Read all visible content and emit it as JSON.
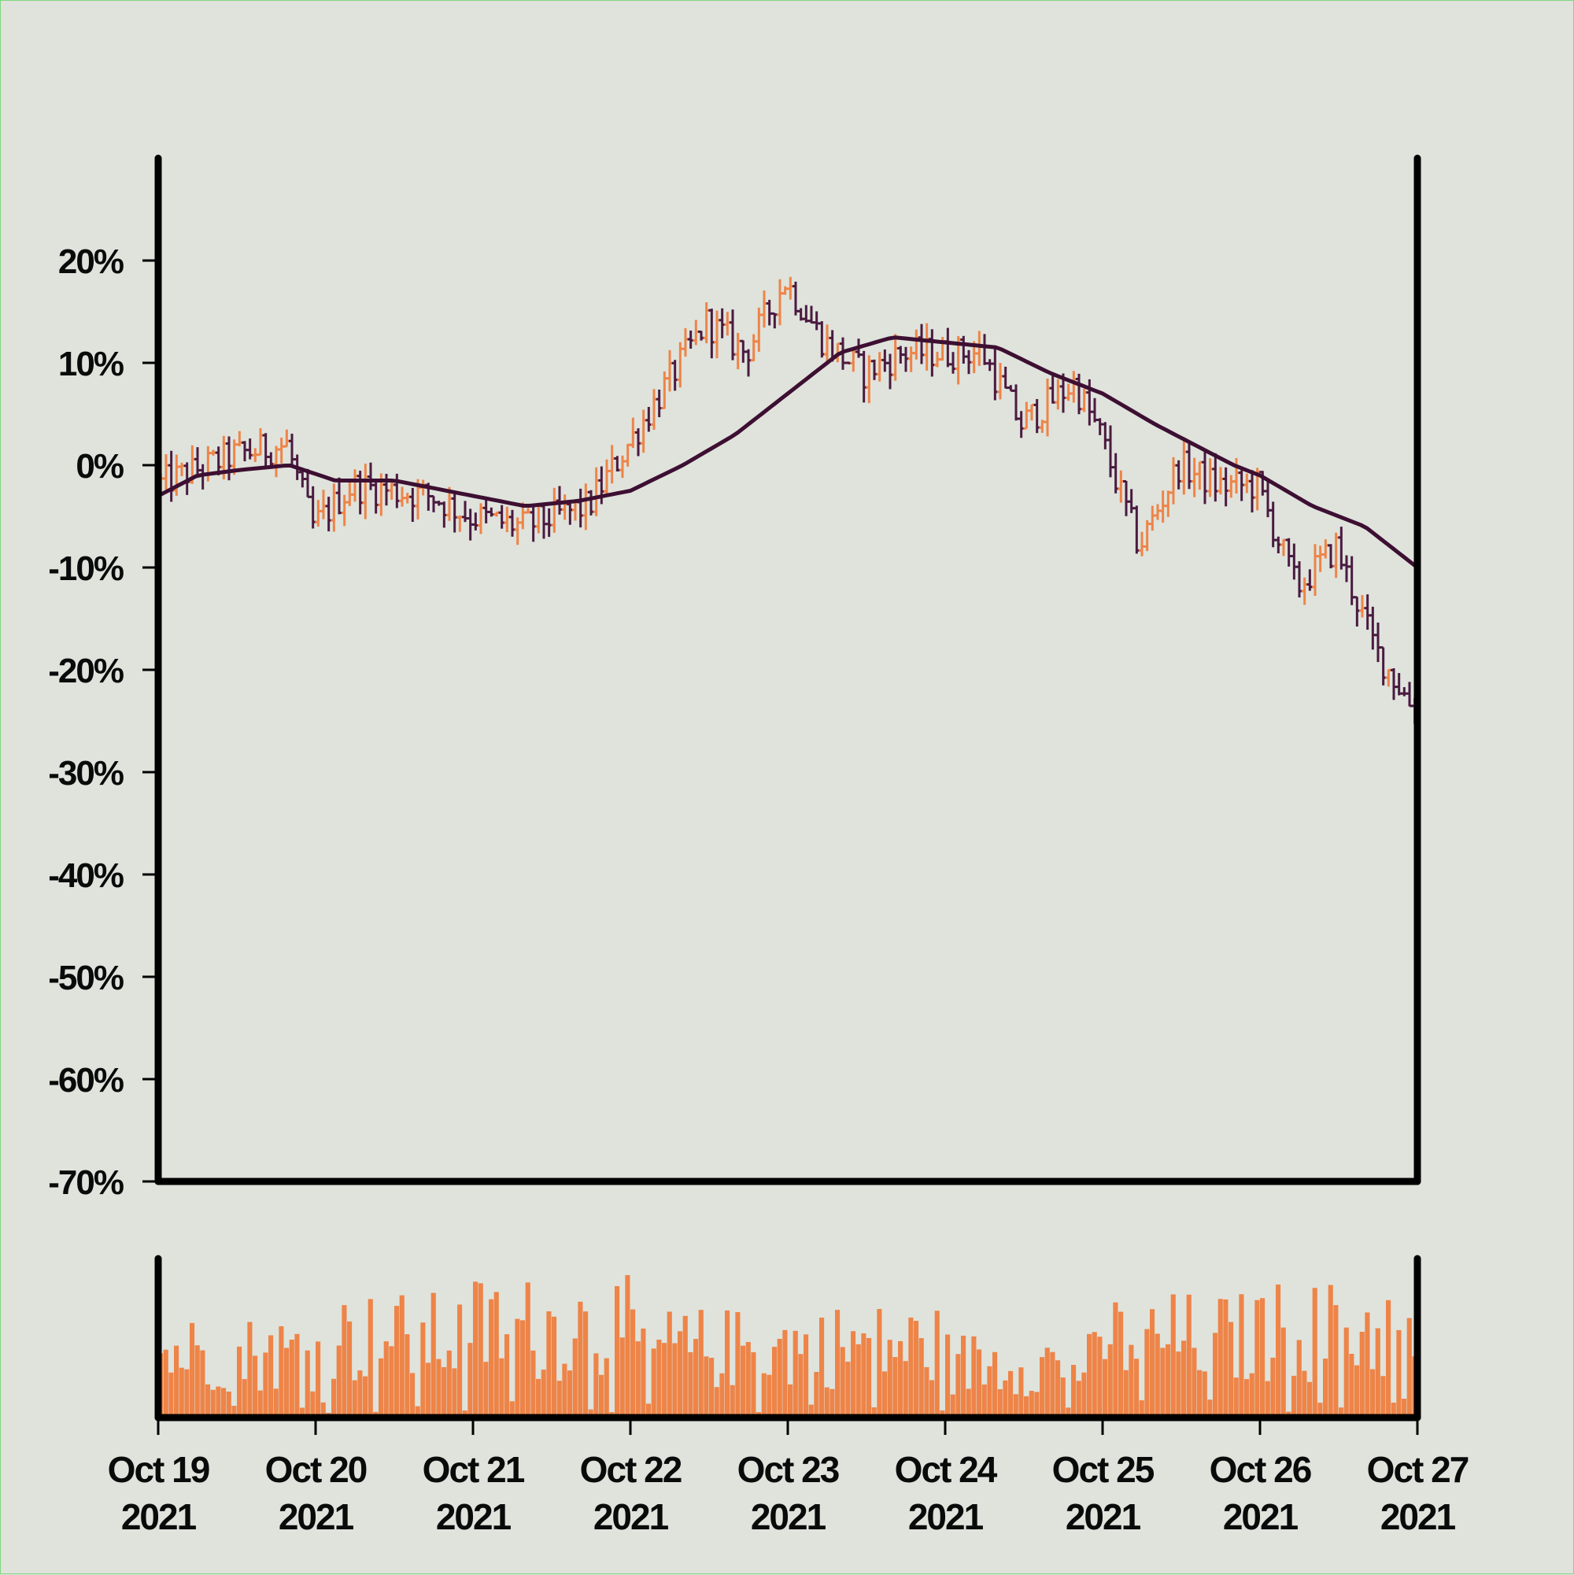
{
  "colors": {
    "background": "#dfe3dc",
    "up": "#ee8448",
    "down": "#4a1a40",
    "moving_average": "#3d0f32",
    "volume": "#ee8448",
    "axis": "#000000"
  },
  "chart_data": [
    {
      "type": "ohlc",
      "title": "",
      "xlabel": "",
      "ylabel": "",
      "ylim": [
        -70,
        30
      ],
      "y_ticks": [
        "20%",
        "10%",
        "0%",
        "-10%",
        "-20%",
        "-30%",
        "-40%",
        "-50%",
        "-60%",
        "-70%"
      ],
      "y_tick_values": [
        20,
        10,
        0,
        -10,
        -20,
        -30,
        -40,
        -50,
        -60,
        -70
      ],
      "x_range": [
        "2021-10-19",
        "2021-10-27"
      ],
      "grid": false,
      "bars_per_day": 30,
      "close_anchors": [
        {
          "x": "2021-10-19 00:00",
          "y": -2
        },
        {
          "x": "2021-10-19 12:00",
          "y": 1
        },
        {
          "x": "2021-10-19 20:00",
          "y": 2
        },
        {
          "x": "2021-10-20 00:00",
          "y": -6
        },
        {
          "x": "2021-10-20 06:00",
          "y": -2
        },
        {
          "x": "2021-10-20 18:00",
          "y": -3
        },
        {
          "x": "2021-10-21 00:00",
          "y": -5
        },
        {
          "x": "2021-10-21 08:00",
          "y": -6
        },
        {
          "x": "2021-10-21 18:00",
          "y": -4
        },
        {
          "x": "2021-10-22 00:00",
          "y": 2
        },
        {
          "x": "2021-10-22 06:00",
          "y": 8
        },
        {
          "x": "2021-10-22 12:00",
          "y": 14
        },
        {
          "x": "2021-10-22 18:00",
          "y": 11
        },
        {
          "x": "2021-10-23 00:00",
          "y": 18
        },
        {
          "x": "2021-10-23 06:00",
          "y": 12
        },
        {
          "x": "2021-10-23 12:00",
          "y": 9
        },
        {
          "x": "2021-10-23 18:00",
          "y": 11
        },
        {
          "x": "2021-10-24 06:00",
          "y": 11
        },
        {
          "x": "2021-10-24 12:00",
          "y": 4
        },
        {
          "x": "2021-10-24 20:00",
          "y": 8
        },
        {
          "x": "2021-10-25 00:00",
          "y": 3
        },
        {
          "x": "2021-10-25 06:00",
          "y": -8
        },
        {
          "x": "2021-10-25 12:00",
          "y": 0
        },
        {
          "x": "2021-10-25 18:00",
          "y": -2
        },
        {
          "x": "2021-10-26 00:00",
          "y": -2
        },
        {
          "x": "2021-10-26 06:00",
          "y": -12
        },
        {
          "x": "2021-10-26 12:00",
          "y": -8
        },
        {
          "x": "2021-10-26 18:00",
          "y": -18
        },
        {
          "x": "2021-10-27 00:00",
          "y": -24
        }
      ],
      "moving_average": [
        {
          "x": "2021-10-19 00:00",
          "y": -3
        },
        {
          "x": "2021-10-19 06:00",
          "y": -1
        },
        {
          "x": "2021-10-19 12:00",
          "y": -0.5
        },
        {
          "x": "2021-10-19 20:00",
          "y": 0
        },
        {
          "x": "2021-10-20 03:00",
          "y": -1.5
        },
        {
          "x": "2021-10-20 12:00",
          "y": -1.5
        },
        {
          "x": "2021-10-21 00:00",
          "y": -3
        },
        {
          "x": "2021-10-21 08:00",
          "y": -4
        },
        {
          "x": "2021-10-21 16:00",
          "y": -3.5
        },
        {
          "x": "2021-10-22 00:00",
          "y": -2.5
        },
        {
          "x": "2021-10-22 08:00",
          "y": 0
        },
        {
          "x": "2021-10-22 16:00",
          "y": 3
        },
        {
          "x": "2021-10-23 00:00",
          "y": 7
        },
        {
          "x": "2021-10-23 08:00",
          "y": 11
        },
        {
          "x": "2021-10-23 16:00",
          "y": 12.5
        },
        {
          "x": "2021-10-24 00:00",
          "y": 12
        },
        {
          "x": "2021-10-24 08:00",
          "y": 11.5
        },
        {
          "x": "2021-10-24 16:00",
          "y": 9
        },
        {
          "x": "2021-10-25 00:00",
          "y": 7
        },
        {
          "x": "2021-10-25 08:00",
          "y": 4
        },
        {
          "x": "2021-10-25 20:00",
          "y": 0
        },
        {
          "x": "2021-10-26 00:00",
          "y": -1
        },
        {
          "x": "2021-10-26 08:00",
          "y": -4
        },
        {
          "x": "2021-10-26 16:00",
          "y": -6
        },
        {
          "x": "2021-10-27 00:00",
          "y": -10
        }
      ]
    },
    {
      "type": "bar",
      "title": "",
      "series": "volume",
      "x_range": [
        "2021-10-19",
        "2021-10-27"
      ],
      "y_ticks": [],
      "relative_level_by_day": [
        0.45,
        0.55,
        0.62,
        0.48,
        0.5,
        0.38,
        0.55,
        0.6
      ]
    }
  ],
  "x_axis": {
    "ticks": [
      {
        "line1": "Oct 19",
        "line2": "2021"
      },
      {
        "line1": "Oct 20",
        "line2": "2021"
      },
      {
        "line1": "Oct 21",
        "line2": "2021"
      },
      {
        "line1": "Oct 22",
        "line2": "2021"
      },
      {
        "line1": "Oct 23",
        "line2": "2021"
      },
      {
        "line1": "Oct 24",
        "line2": "2021"
      },
      {
        "line1": "Oct 25",
        "line2": "2021"
      },
      {
        "line1": "Oct 26",
        "line2": "2021"
      },
      {
        "line1": "Oct 27",
        "line2": "2021"
      }
    ]
  }
}
